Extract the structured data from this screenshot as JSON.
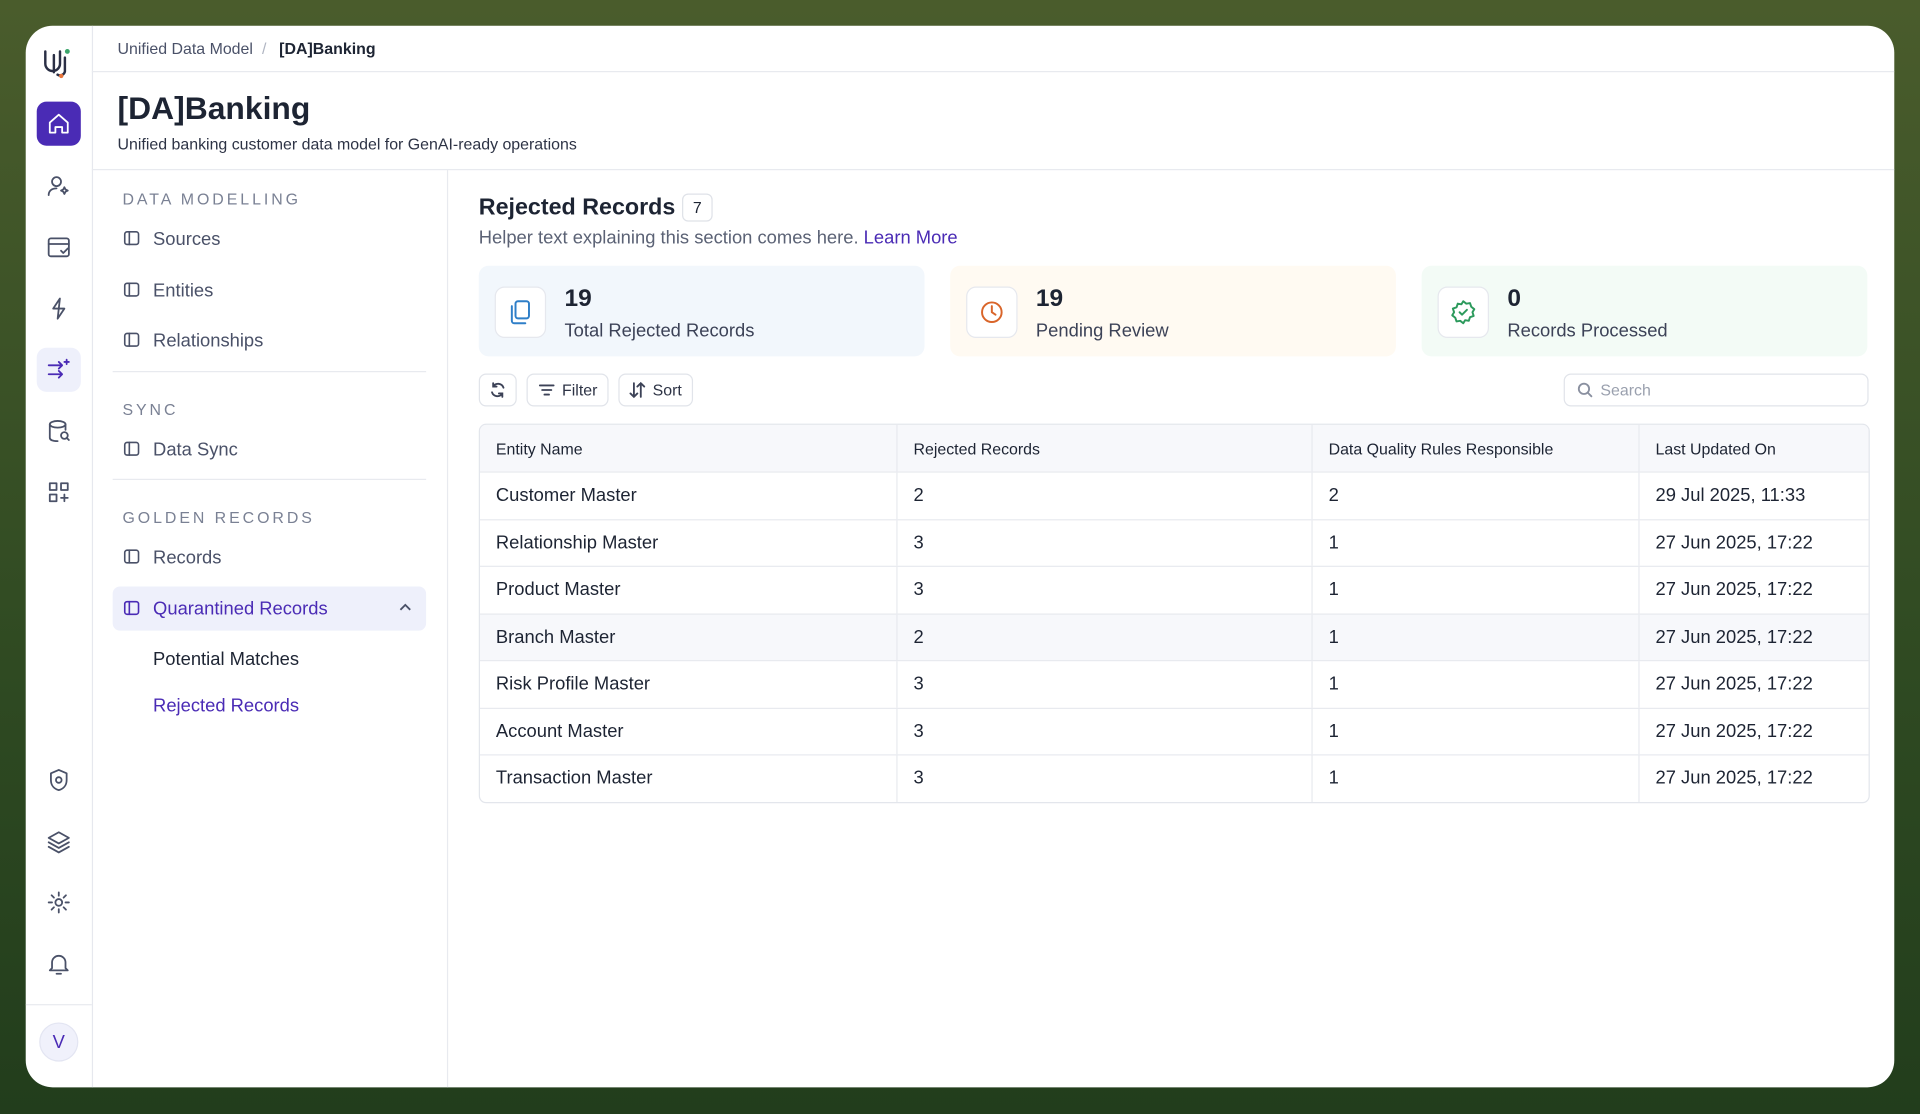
{
  "breadcrumb": [
    "Unified Data Model",
    "[DA]Banking"
  ],
  "header": {
    "title": "[DA]Banking",
    "subtitle": "Unified banking customer data model for GenAI-ready operations"
  },
  "nav": {
    "sections": [
      {
        "heading": "DATA MODELLING",
        "items": [
          "Sources",
          "Entities",
          "Relationships"
        ]
      },
      {
        "heading": "SYNC",
        "items": [
          "Data Sync"
        ]
      },
      {
        "heading": "GOLDEN RECORDS",
        "items": [
          "Records",
          "Quarantined Records"
        ]
      }
    ],
    "subitems": [
      "Potential Matches",
      "Rejected Records"
    ]
  },
  "section": {
    "title": "Rejected Records",
    "count": 7,
    "helper": "Helper text explaining this section comes here.",
    "link": "Learn More"
  },
  "stats": [
    {
      "value": 19,
      "label": "Total Rejected Records"
    },
    {
      "value": 19,
      "label": "Pending Review"
    },
    {
      "value": 0,
      "label": "Records Processed"
    }
  ],
  "toolbar": {
    "filter": "Filter",
    "sort": "Sort",
    "search": "Search"
  },
  "table": {
    "columns": [
      "Entity Name",
      "Rejected Records",
      "Data Quality Rules Responsible",
      "Last Updated On"
    ],
    "rows": [
      [
        "Customer Master",
        2,
        2,
        "29 Jul 2025, 11:33"
      ],
      [
        "Relationship Master",
        3,
        1,
        "27 Jun 2025, 17:22"
      ],
      [
        "Product Master",
        3,
        1,
        "27 Jun 2025, 17:22"
      ],
      [
        "Branch Master",
        2,
        1,
        "27 Jun 2025, 17:22"
      ],
      [
        "Risk Profile Master",
        3,
        1,
        "27 Jun 2025, 17:22"
      ],
      [
        "Account Master",
        3,
        1,
        "27 Jun 2025, 17:22"
      ],
      [
        "Transaction Master",
        3,
        1,
        "27 Jun 2025, 17:22"
      ]
    ]
  },
  "user": {
    "avatar": "V"
  }
}
